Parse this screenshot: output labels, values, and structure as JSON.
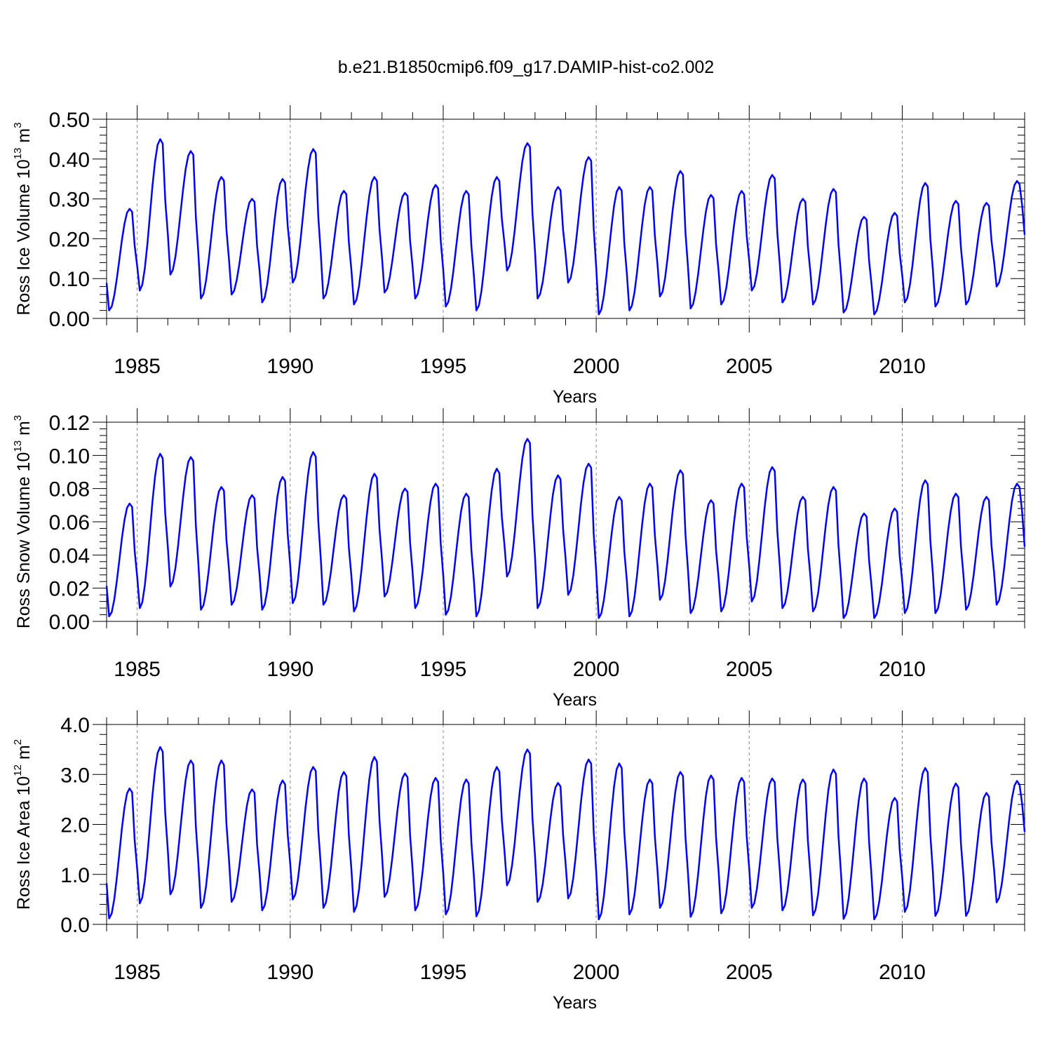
{
  "title": "b.e21.B1850cmip6.f09_g17.DAMIP-hist-co2.002",
  "series_color": "#0000ff",
  "chart_data": [
    {
      "type": "line",
      "name": "ice-volume",
      "ylabel_main": "Ross Ice Volume 10",
      "ylabel_exp": "13",
      "ylabel_unit": " m",
      "ylabel_unit_exp": "3",
      "xlabel": "Years",
      "xlim": [
        1984.0,
        2014.0
      ],
      "ylim": [
        0,
        0.5
      ],
      "yticks": [
        0,
        0.1,
        0.2,
        0.3,
        0.4,
        0.5
      ],
      "ytick_labels": [
        "0.00",
        "0.10",
        "0.20",
        "0.30",
        "0.40",
        "0.50"
      ],
      "xticks": [
        1985,
        1990,
        1995,
        2000,
        2005,
        2010
      ],
      "xtick_labels": [
        "1985",
        "1990",
        "1995",
        "2000",
        "2005",
        "2010"
      ],
      "grid_x": "dashed",
      "peaks": [
        0.275,
        0.45,
        0.42,
        0.355,
        0.3,
        0.35,
        0.425,
        0.32,
        0.355,
        0.315,
        0.335,
        0.32,
        0.355,
        0.44,
        0.33,
        0.405,
        0.33,
        0.33,
        0.37,
        0.31,
        0.32,
        0.36,
        0.3,
        0.325,
        0.255,
        0.265,
        0.34,
        0.295,
        0.29,
        0.345
      ],
      "troughs": [
        0.02,
        0.07,
        0.11,
        0.05,
        0.06,
        0.04,
        0.09,
        0.05,
        0.035,
        0.065,
        0.05,
        0.03,
        0.02,
        0.12,
        0.05,
        0.09,
        0.01,
        0.02,
        0.055,
        0.025,
        0.035,
        0.07,
        0.04,
        0.035,
        0.015,
        0.01,
        0.04,
        0.03,
        0.035,
        0.08
      ],
      "end_value": 0.21
    },
    {
      "type": "line",
      "name": "snow-volume",
      "ylabel_main": "Ross Snow Volume 10",
      "ylabel_exp": "13",
      "ylabel_unit": " m",
      "ylabel_unit_exp": "3",
      "xlabel": "Years",
      "xlim": [
        1984.0,
        2014.0
      ],
      "ylim": [
        0,
        0.12
      ],
      "yticks": [
        0,
        0.02,
        0.04,
        0.06,
        0.08,
        0.1,
        0.12
      ],
      "ytick_labels": [
        "0.00",
        "0.02",
        "0.04",
        "0.06",
        "0.08",
        "0.10",
        "0.12"
      ],
      "xticks": [
        1985,
        1990,
        1995,
        2000,
        2005,
        2010
      ],
      "xtick_labels": [
        "1985",
        "1990",
        "1995",
        "2000",
        "2005",
        "2010"
      ],
      "grid_x": "dashed",
      "peaks": [
        0.071,
        0.101,
        0.099,
        0.081,
        0.076,
        0.087,
        0.102,
        0.076,
        0.089,
        0.08,
        0.083,
        0.077,
        0.092,
        0.11,
        0.088,
        0.095,
        0.075,
        0.083,
        0.091,
        0.073,
        0.083,
        0.093,
        0.075,
        0.081,
        0.065,
        0.068,
        0.085,
        0.077,
        0.075,
        0.083
      ],
      "troughs": [
        0.003,
        0.008,
        0.021,
        0.007,
        0.01,
        0.007,
        0.011,
        0.01,
        0.006,
        0.015,
        0.008,
        0.004,
        0.003,
        0.027,
        0.008,
        0.016,
        0.002,
        0.003,
        0.013,
        0.005,
        0.006,
        0.012,
        0.008,
        0.006,
        0.002,
        0.002,
        0.005,
        0.005,
        0.007,
        0.01
      ],
      "end_value": 0.045
    },
    {
      "type": "line",
      "name": "ice-area",
      "ylabel_main": "Ross Ice Area 10",
      "ylabel_exp": "12",
      "ylabel_unit": " m",
      "ylabel_unit_exp": "2",
      "xlabel": "Years",
      "xlim": [
        1984.0,
        2014.0
      ],
      "ylim": [
        0,
        4
      ],
      "yticks": [
        0,
        1,
        2,
        3,
        4
      ],
      "ytick_labels": [
        "0.0",
        "1.0",
        "2.0",
        "3.0",
        "4.0"
      ],
      "xticks": [
        1985,
        1990,
        1995,
        2000,
        2005,
        2010
      ],
      "xtick_labels": [
        "1985",
        "1990",
        "1995",
        "2000",
        "2005",
        "2010"
      ],
      "grid_x": "dashed",
      "peaks": [
        2.72,
        3.55,
        3.28,
        3.28,
        2.7,
        2.88,
        3.15,
        3.05,
        3.35,
        3.02,
        2.93,
        2.9,
        3.15,
        3.5,
        2.83,
        3.3,
        3.22,
        2.9,
        3.05,
        2.98,
        2.93,
        2.92,
        2.9,
        3.1,
        2.92,
        2.53,
        3.13,
        2.82,
        2.63,
        2.87
      ],
      "troughs": [
        0.12,
        0.42,
        0.6,
        0.33,
        0.45,
        0.28,
        0.5,
        0.33,
        0.25,
        0.55,
        0.28,
        0.2,
        0.16,
        0.78,
        0.45,
        0.52,
        0.1,
        0.2,
        0.33,
        0.15,
        0.22,
        0.33,
        0.28,
        0.18,
        0.11,
        0.1,
        0.25,
        0.17,
        0.17,
        0.44
      ],
      "end_value": 1.85
    }
  ]
}
